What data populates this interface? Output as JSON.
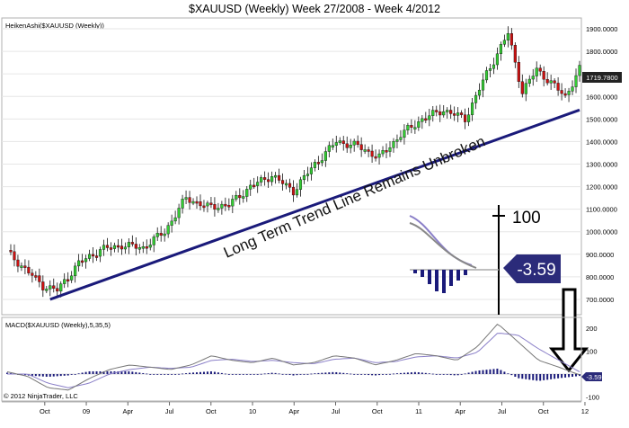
{
  "title": "$XAUUSD (Weekly)  Week 27/2008 - Week 4/2012",
  "copyright": "© 2012 NinjaTrader, LLC",
  "price_panel": {
    "label": "HeikenAshi($XAUUSD (Weekly))",
    "last_price": "1719.7800",
    "annotation": "Long Term Trend Line Remains Unbroken",
    "colors": {
      "up": "#33cc33",
      "down": "#cc1111",
      "trendline": "#1a1a7a"
    }
  },
  "macd_panel": {
    "label": "MACD($XAUUSD (Weekly),5,35,5)",
    "last_value": "-3.59",
    "colors": {
      "macd": "#777777",
      "signal": "#8a7fc8",
      "histogram": "#1a1a7a",
      "badge": "#2b2b7a"
    }
  },
  "inset": {
    "scale_label": "100",
    "badge_value": "-3.59"
  },
  "chart_data": [
    {
      "type": "candlestick",
      "title": "$XAUUSD (Weekly)  Week 27/2008 - Week 4/2012",
      "series_label": "HeikenAshi($XAUUSD (Weekly))",
      "y_ticks": [
        "1900.0000",
        "1800.0000",
        "1700.0000",
        "1600.0000",
        "1500.0000",
        "1400.0000",
        "1300.0000",
        "1200.0000",
        "1100.0000",
        "1000.0000",
        "900.0000",
        "800.0000",
        "700.0000"
      ],
      "ylim": [
        640,
        1940
      ],
      "x_ticks": [
        "Oct",
        "09",
        "Apr",
        "Jul",
        "Oct",
        "10",
        "Apr",
        "Jul",
        "Oct",
        "11",
        "Apr",
        "Jul",
        "Oct",
        "12"
      ],
      "price_path": [
        {
          "week": 0,
          "close": 910
        },
        {
          "week": 10,
          "close": 760
        },
        {
          "week": 14,
          "close": 740
        },
        {
          "week": 20,
          "close": 860
        },
        {
          "week": 26,
          "close": 920
        },
        {
          "week": 32,
          "close": 940
        },
        {
          "week": 38,
          "close": 930
        },
        {
          "week": 44,
          "close": 1000
        },
        {
          "week": 50,
          "close": 1150
        },
        {
          "week": 56,
          "close": 1110
        },
        {
          "week": 62,
          "close": 1120
        },
        {
          "week": 68,
          "close": 1200
        },
        {
          "week": 74,
          "close": 1250
        },
        {
          "week": 80,
          "close": 1180
        },
        {
          "week": 86,
          "close": 1300
        },
        {
          "week": 92,
          "close": 1400
        },
        {
          "week": 98,
          "close": 1380
        },
        {
          "week": 104,
          "close": 1330
        },
        {
          "week": 110,
          "close": 1430
        },
        {
          "week": 116,
          "close": 1500
        },
        {
          "week": 122,
          "close": 1540
        },
        {
          "week": 128,
          "close": 1500
        },
        {
          "week": 134,
          "close": 1700
        },
        {
          "week": 140,
          "close": 1880
        },
        {
          "week": 144,
          "close": 1620
        },
        {
          "week": 148,
          "close": 1720
        },
        {
          "week": 152,
          "close": 1660
        },
        {
          "week": 156,
          "close": 1600
        },
        {
          "week": 160,
          "close": 1719.78
        }
      ],
      "last_value": 1719.78,
      "trendline": {
        "start": {
          "week": 12,
          "price": 700
        },
        "end": {
          "week": 160,
          "price": 1540
        }
      },
      "annotations": [
        "Long Term Trend Line Remains Unbroken"
      ]
    },
    {
      "type": "line",
      "title": "MACD($XAUUSD (Weekly),5,35,5)",
      "y_ticks": [
        "200",
        "100",
        "0",
        "-100"
      ],
      "ylim": [
        -110,
        240
      ],
      "series": [
        {
          "values": [
            10,
            -10,
            -60,
            -70,
            -20,
            20,
            40,
            30,
            20,
            40,
            80,
            60,
            50,
            70,
            40,
            50,
            80,
            70,
            40,
            60,
            90,
            80,
            60,
            120,
            220,
            140,
            60,
            30,
            -3.59
          ]
        },
        {
          "values": [
            0,
            0,
            -40,
            -60,
            -40,
            0,
            20,
            30,
            25,
            30,
            60,
            65,
            55,
            60,
            50,
            45,
            65,
            70,
            50,
            55,
            75,
            80,
            70,
            95,
            180,
            170,
            110,
            60,
            10
          ]
        }
      ],
      "last_value": -3.59
    }
  ]
}
